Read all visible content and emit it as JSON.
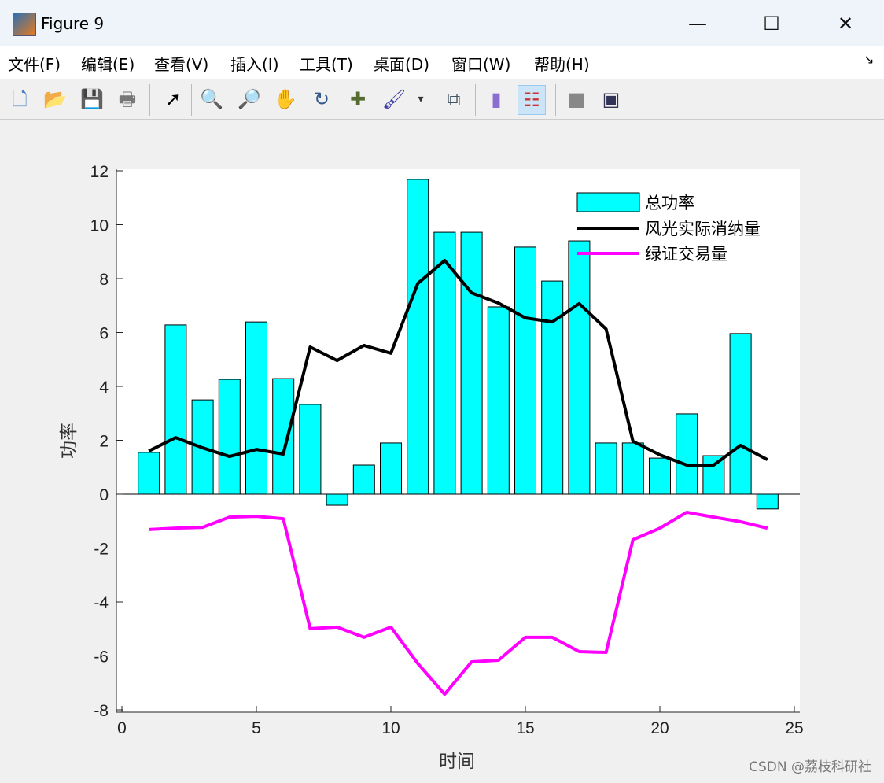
{
  "window": {
    "title": "Figure 9",
    "minimize": "—",
    "maximize": "☐",
    "close": "✕"
  },
  "menu": [
    "文件(F)",
    "编辑(E)",
    "查看(V)",
    "插入(I)",
    "工具(T)",
    "桌面(D)",
    "窗口(W)",
    "帮助(H)"
  ],
  "menu_arrow": "↘",
  "toolbar": [
    {
      "name": "new-figure-icon",
      "glyph": "🗋"
    },
    {
      "name": "open-icon",
      "glyph": "📂"
    },
    {
      "name": "save-icon",
      "glyph": "💾"
    },
    {
      "name": "print-icon",
      "glyph": "🖶"
    },
    {
      "name": "pointer-icon",
      "glyph": "➚"
    },
    {
      "name": "zoom-in-icon",
      "glyph": "🔍"
    },
    {
      "name": "zoom-out-icon",
      "glyph": "🔎"
    },
    {
      "name": "pan-icon",
      "glyph": "✋"
    },
    {
      "name": "rotate-icon",
      "glyph": "↻"
    },
    {
      "name": "data-cursor-icon",
      "glyph": "✚"
    },
    {
      "name": "brush-icon",
      "glyph": "🖌"
    },
    {
      "name": "brush-dropdown-icon",
      "glyph": "▾"
    },
    {
      "name": "link-plot-icon",
      "glyph": "⧉"
    },
    {
      "name": "colorbar-icon",
      "glyph": "▮"
    },
    {
      "name": "legend-icon",
      "glyph": "☷"
    },
    {
      "name": "hide-plot-tools-icon",
      "glyph": "■"
    },
    {
      "name": "show-plot-tools-icon",
      "glyph": "▣"
    }
  ],
  "watermark": "CSDN @荔枝科研社",
  "chart_data": {
    "type": "bar+line",
    "xlabel": "时间",
    "ylabel": "功率",
    "xlim": [
      0,
      25
    ],
    "ylim": [
      -8,
      12
    ],
    "xticks": [
      0,
      5,
      10,
      15,
      20,
      25
    ],
    "yticks": [
      -8,
      -6,
      -4,
      -2,
      0,
      2,
      4,
      6,
      8,
      10,
      12
    ],
    "x": [
      1,
      2,
      3,
      4,
      5,
      6,
      7,
      8,
      9,
      10,
      11,
      12,
      13,
      14,
      15,
      16,
      17,
      18,
      19,
      20,
      21,
      22,
      23,
      24
    ],
    "legend_position": "top-right",
    "series": [
      {
        "name": "总功率",
        "kind": "bar",
        "color": "#00ffff",
        "values": [
          1.55,
          6.28,
          3.5,
          4.26,
          6.39,
          4.29,
          3.33,
          -0.41,
          1.08,
          1.9,
          11.68,
          9.72,
          9.72,
          6.95,
          9.17,
          7.91,
          9.4,
          1.9,
          1.9,
          1.34,
          2.98,
          1.43,
          5.96,
          -0.55
        ]
      },
      {
        "name": "风光实际消纳量",
        "kind": "line",
        "color": "#000000",
        "values": [
          1.6,
          2.1,
          1.72,
          1.4,
          1.66,
          1.49,
          5.46,
          4.96,
          5.52,
          5.23,
          7.82,
          8.67,
          7.47,
          7.09,
          6.54,
          6.39,
          7.07,
          6.13,
          1.96,
          1.46,
          1.08,
          1.08,
          1.81,
          1.28
        ]
      },
      {
        "name": "绿证交易量",
        "kind": "line",
        "color": "#ff00ff",
        "values": [
          -1.31,
          -1.26,
          -1.23,
          -0.85,
          -0.82,
          -0.91,
          -4.99,
          -4.93,
          -5.31,
          -4.93,
          -6.28,
          -7.42,
          -6.22,
          -6.16,
          -5.31,
          -5.31,
          -5.84,
          -5.87,
          -1.69,
          -1.26,
          -0.67,
          -0.85,
          -1.02,
          -1.26
        ]
      }
    ]
  }
}
